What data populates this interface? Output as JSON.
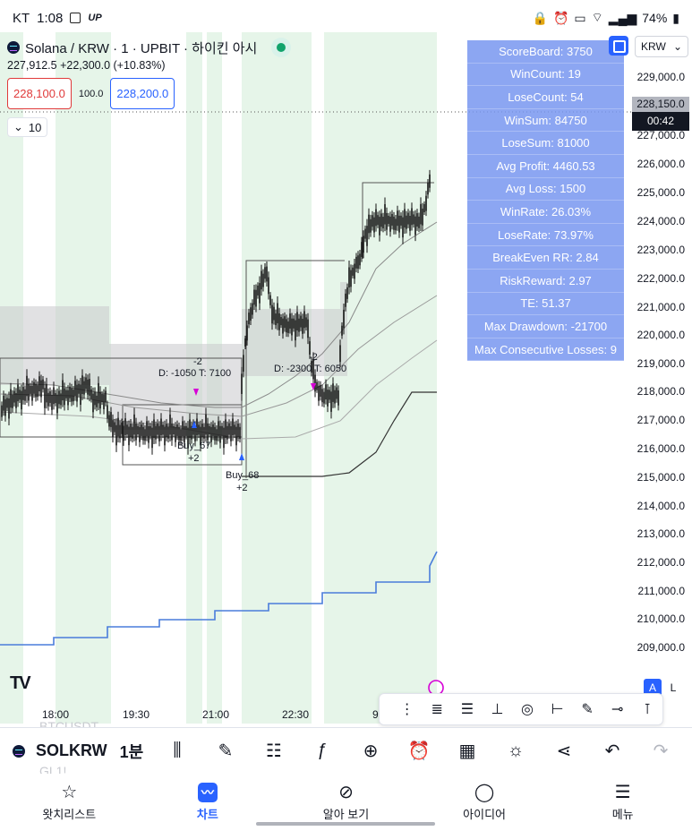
{
  "status_bar": {
    "carrier": "KT",
    "time": "1:08",
    "badge": "UP",
    "battery": "74%"
  },
  "chart": {
    "title": "Solana / KRW · 1 · UPBIT · 하이킨 아시",
    "price_info": "227,912.5  +22,300.0 (+10.83%)",
    "bid": "228,100.0",
    "spread": "100.0",
    "ask": "228,200.0",
    "indicator_count": "10",
    "currency": "KRW",
    "last_price": "228,150.0",
    "countdown": "00:42",
    "y_axis_labels": [
      "229,000.0",
      "227,000.0",
      "226,000.0",
      "225,000.0",
      "224,000.0",
      "223,000.0",
      "222,000.0",
      "221,000.0",
      "220,000.0",
      "219,000.0",
      "218,000.0",
      "217,000.0",
      "216,000.0",
      "215,000.0",
      "214,000.0",
      "213,000.0",
      "212,000.0",
      "211,000.0",
      "210,000.0",
      "209,000.0"
    ],
    "x_axis_labels": [
      "18:00",
      "19:30",
      "21:00",
      "22:30",
      "9"
    ],
    "annotations": {
      "trade1_target": "-2",
      "trade1_text": "D: -1050   T: 7100",
      "trade2_target": "-2",
      "trade2_text": "D: -2300   T: 6050",
      "buy67": "Buy_67",
      "buy67_qty": "+2",
      "buy68": "Buy_68",
      "buy68_qty": "+2"
    },
    "scale_buttons": {
      "auto": "A",
      "log": "L"
    },
    "logo": "TV"
  },
  "scoreboard": [
    "ScoreBoard: 3750",
    "WinCount: 19",
    "LoseCount: 54",
    "WinSum: 84750",
    "LoseSum: 81000",
    "Avg Profit: 4460.53",
    "Avg Loss: 1500",
    "WinRate: 26.03%",
    "LoseRate: 73.97%",
    "BreakEven RR: 2.84",
    "RiskReward: 2.97",
    "TE: 51.37",
    "Max Drawdown: -21700",
    "Max Consecutive Losses: 9"
  ],
  "symbol_bar": {
    "symbol": "SOLKRW",
    "timeframe": "1분",
    "ghost_above": "BTCUSDT",
    "ghost_below": "GL1!"
  },
  "nav": {
    "watchlist": "왓치리스트",
    "chart": "차트",
    "explore": "알아 보기",
    "ideas": "아이디어",
    "menu": "메뉴"
  },
  "colors": {
    "accent": "#2962ff",
    "bid": "#e03a3a",
    "scoreboard_bg": "#7896f0",
    "session_green": "#e6f5e9"
  }
}
